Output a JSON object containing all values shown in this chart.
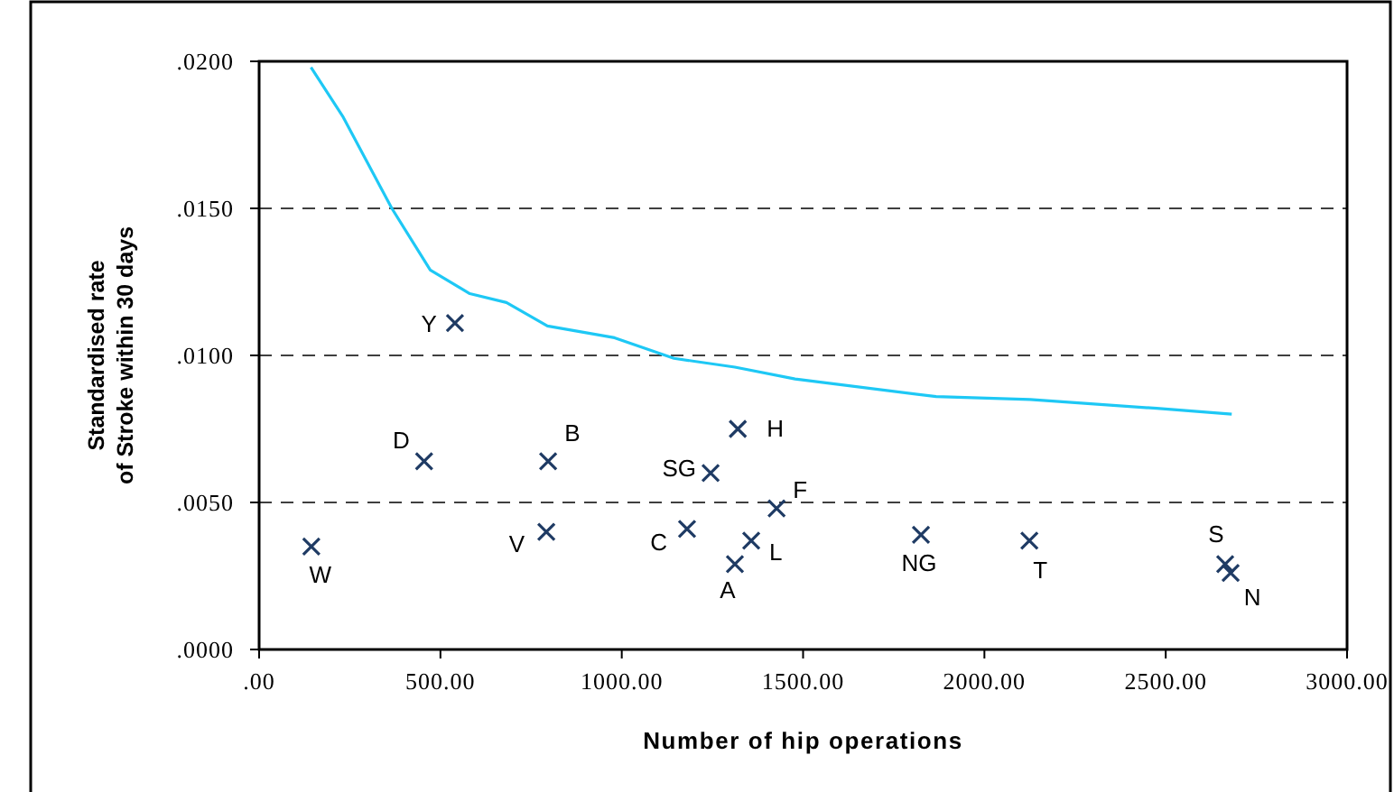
{
  "chart_data": {
    "type": "scatter",
    "xlabel": "Number of hip operations",
    "ylabel": "Standardised rate\nof Stroke within 30 days",
    "xlim": [
      0,
      3000
    ],
    "xticks": [
      {
        "value": 0,
        "label": ".00"
      },
      {
        "value": 500,
        "label": "500.00"
      },
      {
        "value": 1000,
        "label": "1000.00"
      },
      {
        "value": 1500,
        "label": "1500.00"
      },
      {
        "value": 2000,
        "label": "2000.00"
      },
      {
        "value": 2500,
        "label": "2500.00"
      },
      {
        "value": 3000,
        "label": "3000.00"
      }
    ],
    "ylim": [
      0,
      0.02
    ],
    "yticks": [
      {
        "value": 0,
        "label": ".0000"
      },
      {
        "value": 0.005,
        "label": ".0050"
      },
      {
        "value": 0.01,
        "label": ".0100"
      },
      {
        "value": 0.015,
        "label": ".0150"
      },
      {
        "value": 0.02,
        "label": ".0200"
      }
    ],
    "grid": "y",
    "series": [
      {
        "type": "line",
        "color": "#1ec8f5",
        "line_style": "solid",
        "marker": "none",
        "x": [
          143,
          232,
          366,
          472,
          581,
          682,
          795,
          980,
          1144,
          1312,
          1478,
          1867,
          2126,
          2475,
          2682
        ],
        "values": [
          0.0198,
          0.0181,
          0.015,
          0.0129,
          0.0121,
          0.0118,
          0.011,
          0.0106,
          0.0099,
          0.0096,
          0.0092,
          0.0086,
          0.0085,
          0.0082,
          0.008
        ]
      },
      {
        "type": "scatter",
        "color": "#1f3b64",
        "marker": "cross",
        "x": [
          144,
          540,
          455,
          797,
          792,
          1245,
          1320,
          1180,
          1427,
          1357,
          1312,
          1825,
          2124,
          2664,
          2679
        ],
        "values": [
          0.0035,
          0.0111,
          0.0064,
          0.0064,
          0.004,
          0.006,
          0.0075,
          0.0041,
          0.0048,
          0.0037,
          0.0029,
          0.0039,
          0.0037,
          0.0029,
          0.0026
        ]
      }
    ],
    "annotations": [
      {
        "text": "W",
        "x": 144,
        "y": 0.0035
      },
      {
        "text": "Y",
        "x": 540,
        "y": 0.0111
      },
      {
        "text": "D",
        "x": 455,
        "y": 0.0064
      },
      {
        "text": "B",
        "x": 797,
        "y": 0.0064
      },
      {
        "text": "V",
        "x": 792,
        "y": 0.004
      },
      {
        "text": "SG",
        "x": 1245,
        "y": 0.006
      },
      {
        "text": "H",
        "x": 1320,
        "y": 0.0075
      },
      {
        "text": "C",
        "x": 1180,
        "y": 0.0041
      },
      {
        "text": "F",
        "x": 1427,
        "y": 0.0048
      },
      {
        "text": "L",
        "x": 1357,
        "y": 0.0037
      },
      {
        "text": "A",
        "x": 1312,
        "y": 0.0029
      },
      {
        "text": "NG",
        "x": 1825,
        "y": 0.0039
      },
      {
        "text": "T",
        "x": 2124,
        "y": 0.0037
      },
      {
        "text": "S",
        "x": 2664,
        "y": 0.0029
      },
      {
        "text": "N",
        "x": 2679,
        "y": 0.0026
      }
    ]
  }
}
